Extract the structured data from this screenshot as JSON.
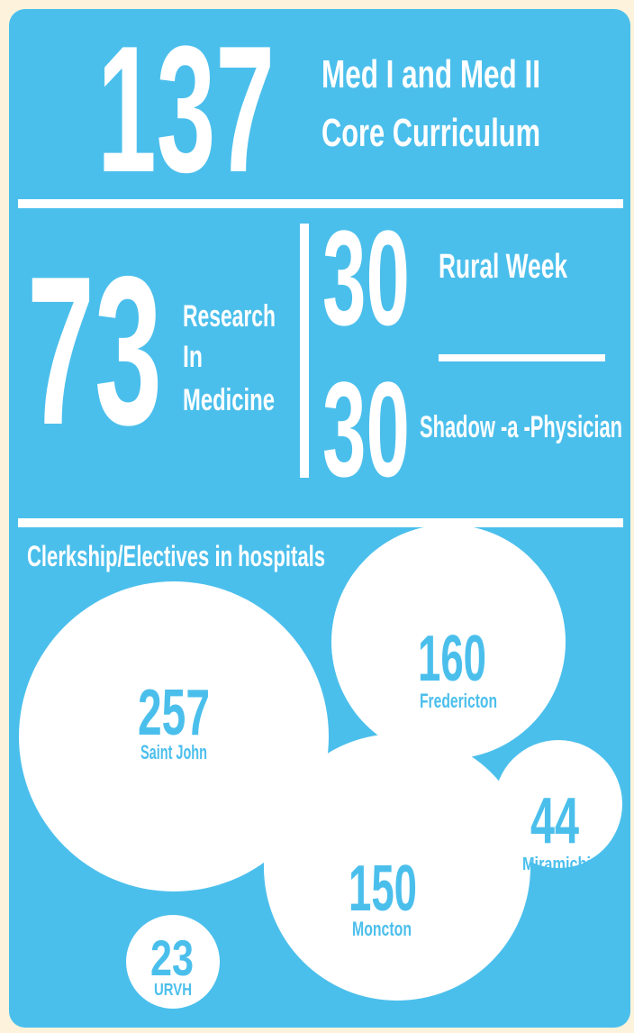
{
  "top": {
    "number": 137,
    "label_lines": [
      "Med I and Med II",
      "Core Curriculum"
    ]
  },
  "research": {
    "number": 73,
    "label_lines": [
      "Research",
      "In",
      "Medicine"
    ]
  },
  "rural_week": {
    "number": 30,
    "label": "Rural Week"
  },
  "shadow": {
    "number": 30,
    "label": "Shadow -a -Physician"
  },
  "hospitals": {
    "title": "Clerkship/Electives in hospitals",
    "items": [
      {
        "number": 257,
        "name": "Saint John"
      },
      {
        "number": 160,
        "name": "Fredericton"
      },
      {
        "number": 44,
        "name": "Miramichi"
      },
      {
        "number": 150,
        "name": "Moncton"
      },
      {
        "number": 23,
        "name": "URVH"
      }
    ]
  }
}
